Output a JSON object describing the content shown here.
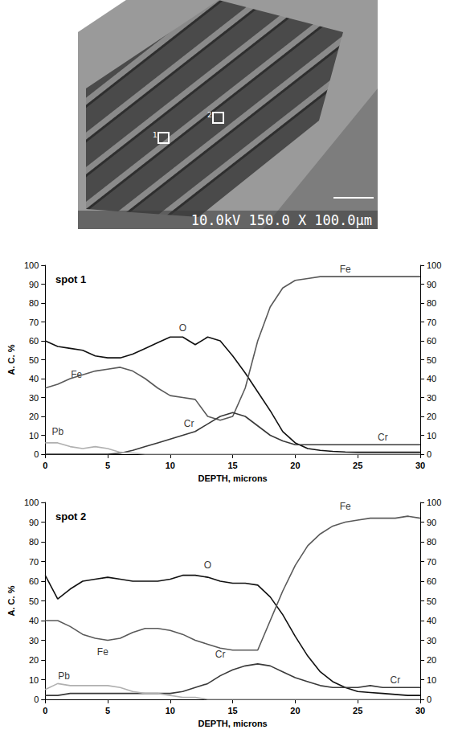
{
  "micrograph": {
    "caption": "10.0kV 150.0 X 100.0µm",
    "markers": [
      "1",
      "2"
    ]
  },
  "chart_data": [
    {
      "type": "line",
      "title": "spot 1",
      "x_label": "DEPTH, microns",
      "y_label": "A. C. %",
      "x": [
        0,
        1,
        2,
        3,
        4,
        5,
        6,
        7,
        8,
        9,
        10,
        11,
        12,
        13,
        14,
        15,
        16,
        17,
        18,
        19,
        20,
        21,
        22,
        23,
        24,
        25,
        26,
        27,
        28,
        29,
        30
      ],
      "series": [
        {
          "name": "O",
          "color": "#111111",
          "values": [
            60,
            57,
            56,
            55,
            52,
            51,
            51,
            53,
            56,
            59,
            62,
            62,
            58,
            62,
            60,
            52,
            43,
            33,
            23,
            12,
            6,
            3,
            2,
            1.5,
            1.2,
            1,
            1,
            1,
            1,
            1,
            1
          ]
        },
        {
          "name": "Fe",
          "color": "#5a5a5a",
          "values": [
            35,
            37,
            40,
            42,
            44,
            45,
            46,
            44,
            40,
            35,
            31,
            30,
            29,
            20,
            18,
            20,
            35,
            60,
            78,
            88,
            92,
            93,
            94,
            94,
            94,
            94,
            94,
            94,
            94,
            94,
            94
          ]
        },
        {
          "name": "Cr",
          "color": "#3a3a3a",
          "values": [
            0,
            0,
            0,
            0,
            0,
            0,
            0.5,
            2,
            4,
            6,
            8,
            10,
            12,
            16,
            20,
            22,
            20,
            15,
            10,
            7,
            5,
            5,
            5,
            5,
            5,
            5,
            5,
            5,
            5,
            5,
            5
          ]
        },
        {
          "name": "Pb",
          "color": "#b0b0b0",
          "values": [
            6,
            6,
            4,
            3,
            4,
            3,
            1,
            0.5,
            0,
            0,
            0,
            0,
            0,
            0,
            0,
            0,
            0,
            0,
            0,
            0,
            0,
            0,
            0,
            0,
            0,
            0,
            0,
            0,
            0,
            0,
            0
          ]
        }
      ],
      "annotations": [
        {
          "text": "O",
          "x": 11,
          "y": 67
        },
        {
          "text": "Fe",
          "x": 2.5,
          "y": 42
        },
        {
          "text": "Fe",
          "x": 24,
          "y": 98
        },
        {
          "text": "Cr",
          "x": 11.5,
          "y": 16
        },
        {
          "text": "Cr",
          "x": 27,
          "y": 9
        },
        {
          "text": "Pb",
          "x": 1,
          "y": 12
        }
      ],
      "xlim": [
        0,
        30
      ],
      "xticks": [
        0,
        5,
        10,
        15,
        20,
        25,
        30
      ],
      "ylim": [
        0,
        100
      ],
      "yticks": [
        0,
        10,
        20,
        30,
        40,
        50,
        60,
        70,
        80,
        90,
        100
      ],
      "y2lim": [
        0,
        100
      ],
      "y2ticks": [
        0,
        10,
        20,
        30,
        40,
        50,
        60,
        70,
        80,
        90,
        100
      ],
      "grid": false
    },
    {
      "type": "line",
      "title": "spot 2",
      "x_label": "DEPTH, microns",
      "y_label": "A. C. %",
      "x": [
        0,
        1,
        2,
        3,
        4,
        5,
        6,
        7,
        8,
        9,
        10,
        11,
        12,
        13,
        14,
        15,
        16,
        17,
        18,
        19,
        20,
        21,
        22,
        23,
        24,
        25,
        26,
        27,
        28,
        29,
        30
      ],
      "series": [
        {
          "name": "O",
          "color": "#111111",
          "values": [
            63,
            51,
            56,
            60,
            61,
            62,
            61,
            60,
            60,
            60,
            61,
            63,
            63,
            62,
            60,
            59,
            59,
            58,
            52,
            43,
            32,
            22,
            14,
            9,
            6,
            4,
            3.5,
            3,
            2.5,
            2,
            2
          ]
        },
        {
          "name": "Fe",
          "color": "#5a5a5a",
          "values": [
            40,
            40,
            37,
            33,
            31,
            30,
            31,
            34,
            36,
            36,
            35,
            33,
            30,
            28,
            26,
            25,
            25,
            25,
            40,
            55,
            68,
            78,
            84,
            88,
            90,
            91,
            92,
            92,
            92,
            93,
            92
          ]
        },
        {
          "name": "Cr",
          "color": "#3a3a3a",
          "values": [
            2,
            2,
            3,
            3,
            3,
            3,
            3,
            3,
            3,
            3,
            3,
            4,
            6,
            8,
            12,
            15,
            17,
            18,
            17,
            14,
            11,
            9,
            7,
            6,
            6,
            6,
            7,
            6,
            6,
            6,
            6
          ]
        },
        {
          "name": "Pb",
          "color": "#b0b0b0",
          "values": [
            5,
            8,
            7,
            7,
            7,
            7,
            6,
            4,
            3,
            3,
            2,
            1,
            1,
            0,
            0,
            0,
            0,
            0,
            0,
            0,
            0,
            0,
            0,
            0,
            0,
            0,
            0,
            0,
            0,
            0,
            0
          ]
        }
      ],
      "annotations": [
        {
          "text": "O",
          "x": 13,
          "y": 68
        },
        {
          "text": "Fe",
          "x": 4.6,
          "y": 24
        },
        {
          "text": "Fe",
          "x": 24,
          "y": 98
        },
        {
          "text": "Cr",
          "x": 14,
          "y": 23
        },
        {
          "text": "Cr",
          "x": 28,
          "y": 10
        },
        {
          "text": "Pb",
          "x": 1.5,
          "y": 12
        }
      ],
      "xlim": [
        0,
        30
      ],
      "xticks": [
        0,
        5,
        10,
        15,
        20,
        25,
        30
      ],
      "ylim": [
        0,
        100
      ],
      "yticks": [
        0,
        10,
        20,
        30,
        40,
        50,
        60,
        70,
        80,
        90,
        100
      ],
      "y2lim": [
        0,
        100
      ],
      "y2ticks": [
        0,
        10,
        20,
        30,
        40,
        50,
        60,
        70,
        80,
        90,
        100
      ],
      "grid": false
    }
  ]
}
